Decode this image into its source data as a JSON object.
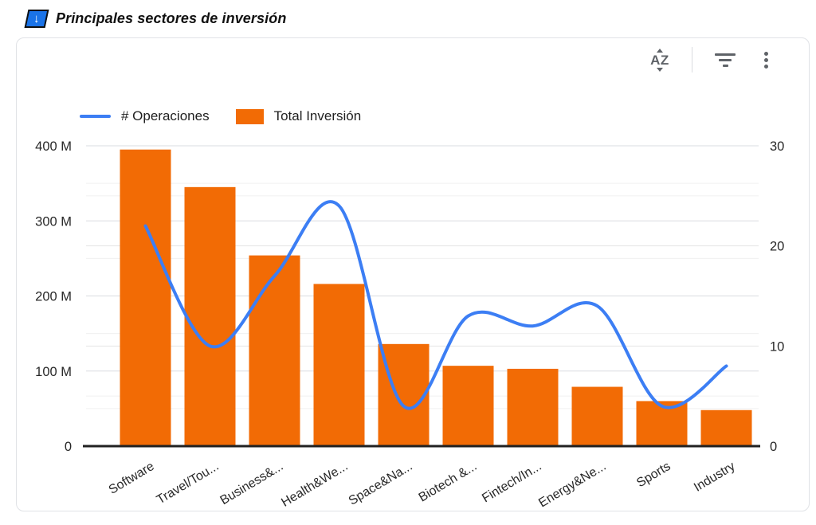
{
  "header": {
    "title": "Principales sectores de inversión",
    "icon_glyph": "↓"
  },
  "toolbar": {
    "sort_icon_text": "AZ",
    "icons": [
      "sort-az",
      "filter",
      "more-vertical"
    ]
  },
  "legend": [
    {
      "label": "# Operaciones",
      "type": "line",
      "color": "#3C7EF4"
    },
    {
      "label": "Total Inversión",
      "type": "bar",
      "color": "#F26B05"
    }
  ],
  "chart_data": {
    "type": "combo",
    "title": "Principales sectores de inversión",
    "categories": [
      "Software",
      "Travel/Tou...",
      "Business&...",
      "Health&We...",
      "Space&Na...",
      "Biotech &...",
      "Fintech/In...",
      "Energy&Ne...",
      "Sports",
      "Industry"
    ],
    "series": [
      {
        "name": "Total Inversión",
        "type": "bar",
        "axis": "left",
        "color": "#F26B05",
        "values_unit": "M",
        "values": [
          395,
          345,
          254,
          216,
          136,
          107,
          103,
          79,
          60,
          48
        ]
      },
      {
        "name": "# Operaciones",
        "type": "line",
        "axis": "right",
        "color": "#3C7EF4",
        "values": [
          22,
          10,
          17,
          24,
          4,
          13,
          12,
          14,
          4,
          8
        ]
      }
    ],
    "left_axis": {
      "min": 0,
      "max": 400,
      "major_step": 100,
      "minor_step": 50,
      "tick_labels": [
        "0",
        "100 M",
        "200 M",
        "300 M",
        "400 M"
      ],
      "unit": "M"
    },
    "right_axis": {
      "min": 0,
      "max": 30,
      "major_step": 10,
      "minor_step": 5,
      "tick_labels": [
        "0",
        "10",
        "20",
        "30"
      ]
    },
    "grid": true,
    "legend_position": "top-left",
    "x_label_rotation": -31
  },
  "colors": {
    "bar": "#F26B05",
    "line": "#3C7EF4",
    "icon_blue": "#1A73E8",
    "toolbar_gray": "#5F6368",
    "axis_text": "#282828",
    "gridline_major": "#DADCE0",
    "gridline_minor": "#F0F0F0",
    "gridline_right": "#E4E4E4",
    "baseline": "#212121",
    "card_border": "#E0E2E6"
  }
}
